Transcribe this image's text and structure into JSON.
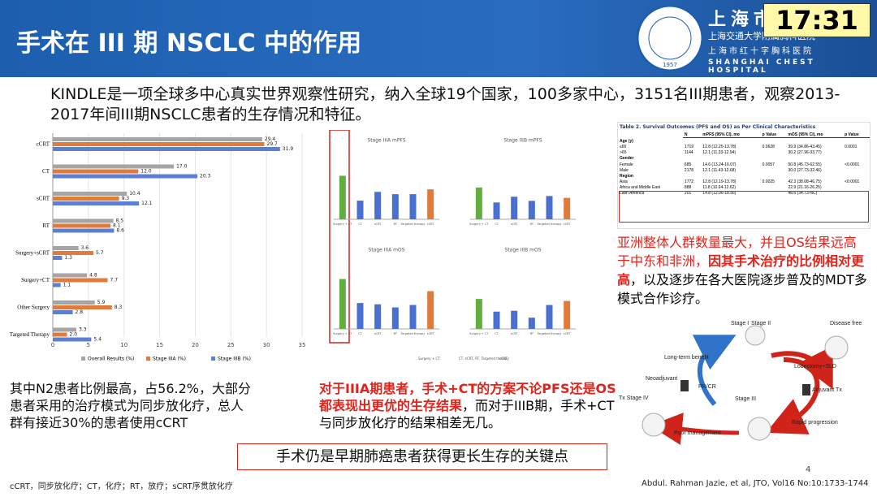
{
  "header": {
    "title": "手术在 III 期 NSCLC 中的作用",
    "clock": "17:31",
    "hospital_cn": "上海市胸科医院",
    "hospital_sub1": "上海交通大学附属胸科医院",
    "hospital_sub2": "上海市红十字胸科医院",
    "hospital_en": "SHANGHAI CHEST HOSPITAL",
    "logo_year": "1957"
  },
  "intro": "KINDLE是一项全球多中心真实世界观察性研究，纳入全球19个国家，100多家中心，3151名III期患者，观察2013-2017年间III期NSCLC患者的生存情况和特征。",
  "bar_chart": {
    "type": "hbar",
    "categories": [
      "cCRT",
      "CT",
      "sCRT",
      "RT",
      "Surgery+sCRT",
      "Surgery+CT",
      "Other Surgery",
      "Targeted Therapy"
    ],
    "series": [
      {
        "name": "Overall Results (%)",
        "color": "#a5a5a5",
        "values": [
          29.4,
          17,
          10.4,
          8.5,
          3.6,
          4.8,
          5.9,
          3.3
        ],
        "value_labels": [
          "29.4",
          "17.0",
          "10.4",
          "8.5",
          "3.6",
          "4.8",
          "5.9",
          "3.3"
        ]
      },
      {
        "name": "Stage IIIA (%)",
        "color": "#e07b39",
        "values": [
          29.7,
          12,
          9.3,
          8.1,
          5.7,
          7.7,
          8.3,
          2
        ],
        "value_labels": [
          "29.7",
          "12.0",
          "9.3",
          "8.1",
          "5.7",
          "7.7",
          "8.3",
          "2.0"
        ]
      },
      {
        "name": "Stage IIIB (%)",
        "color": "#5b7fd6",
        "values": [
          31.9,
          20.3,
          12.1,
          8.6,
          1.3,
          1.1,
          2.8,
          5.4
        ],
        "value_labels": [
          "31.9",
          "20.3",
          "12.1",
          "8.6",
          "1.3",
          "1.1",
          "2.8",
          "5.4"
        ]
      }
    ],
    "xlim": [
      0,
      35
    ],
    "xticks": [
      0,
      5,
      10,
      15,
      20,
      25,
      30,
      35
    ],
    "grid": true
  },
  "mini_charts": {
    "categories": [
      "Surgery + CT",
      "CT",
      "sCRT",
      "RT",
      "Targeted therapy",
      "cCRT"
    ],
    "colors": [
      "#5fae3e",
      "#4a6fd0",
      "#4a6fd0",
      "#4a6fd0",
      "#4a6fd0",
      "#e07b39"
    ],
    "panels": [
      {
        "type": "bar",
        "title": "Stage IIIA mPFS",
        "values": [
          18.9,
          8.1,
          11.9,
          10.9,
          10.9,
          13
        ],
        "ylim": [
          0,
          30
        ]
      },
      {
        "type": "bar",
        "title": "Stage IIIB mPFS",
        "values": [
          13.8,
          7.3,
          9.8,
          8,
          10.1,
          9.3
        ],
        "ylim": [
          0,
          30
        ]
      },
      {
        "type": "bar",
        "title": "Stage IIIA mOS",
        "values": [
          57.8,
          30,
          28.5,
          24.9,
          27.7,
          43.8
        ],
        "ylim": [
          0,
          80
        ]
      },
      {
        "type": "bar",
        "title": "Stage IIIB mOS",
        "values": [
          34.7,
          20,
          21,
          13,
          27.7,
          32.4
        ],
        "ylim": [
          0,
          80
        ]
      }
    ],
    "legend": [
      "Surgery + CT",
      "CT, sCRT, RT, Targeted therapy",
      "cCRT"
    ]
  },
  "table": {
    "title": "Table 2. Survival Outcomes (PFS and OS) as Per Clinical Characteristics",
    "columns": [
      "N",
      "mPFS (95% CI), mo",
      "p Value",
      "mOS (95% CI), mo",
      "p Value"
    ],
    "rows": [
      [
        "Age (y)"
      ],
      [
        "≤65",
        "1719",
        "12.8 (12.25-13.78)",
        "0.0628",
        "39.9 (34.86-43.45)",
        "0.0001"
      ],
      [
        ">65",
        "1144",
        "12.1 (11.33-12.94)",
        null,
        "30.2 (27.96-33.77)",
        null
      ],
      [
        "Gender"
      ],
      [
        "Female",
        "685",
        "14.6 (13.24-16.07)",
        "0.0057",
        "50.8 (45.73-62.55)",
        "<0.0001"
      ],
      [
        "Male",
        "2178",
        "12.1 (11.43-12.68)",
        null,
        "30.0 (27.73-32.46)",
        null
      ],
      [
        "Region"
      ],
      [
        "Asia",
        "1772",
        "12.8 (12.19-13.78)",
        "0.0025",
        "42.3 (38.08-46.75)",
        "<0.0001"
      ],
      [
        "Africa and Middle East",
        "888",
        "11.8 (10.64-12.62)",
        null,
        "22.9 (21.16-26.25)",
        null
      ],
      [
        "Latin America",
        "201",
        "14.8 (12.06-18.56)",
        null,
        "48.6 (34.73-NC)",
        null
      ]
    ]
  },
  "right_note": [
    {
      "text": "亚洲整体人群数量最大，并且OS结果远高于中东和非洲，",
      "red": true,
      "bold": false
    },
    {
      "text": "因其手术治疗的比例相对更高",
      "red": true,
      "bold": true
    },
    {
      "text": "，以及逐步在各大医院逐步普及的MDT多模式合作诊疗。",
      "red": false,
      "bold": false
    }
  ],
  "left_note": "其中N2患者比例最高，占56.2%，大部分患者采用的治疗模式为同步放化疗，总人群有接近30%的患者使用cCRT",
  "middle_note": [
    {
      "text": "对于IIIA期患者，手术+CT的方案不论PFS还是OS都表现出更优的生存结果",
      "red": true,
      "bold": true
    },
    {
      "text": "，而对于IIIB期，手术+CT与同步放化疗的结果相差无几。",
      "red": false,
      "bold": false
    }
  ],
  "diagram": {
    "stage_1": "Stage I",
    "stage_2": "Stage II",
    "disease_free": "Disease free",
    "long_term": "Long-term benefit",
    "pr_cr": "PR/CR",
    "lobectomy": "Lobectomy+SLD",
    "neoadjuvant": "Neoadjuvant",
    "adjuvant": "Adjuvant Tx",
    "stage_3": "Stage III",
    "stage_4": "Tx Stage IV",
    "rapid": "Rapid progression",
    "poor": "Poor management"
  },
  "key_message": "手术仍是早期肺癌患者获得更长生存的关键点",
  "page_number": "4",
  "footnote": "cCRT，同步放化疗；CT，化疗；RT，放疗；sCRT序贯放化疗",
  "citation": "Abdul. Rahman Jazie, et al, JTO, Vol16 No:10:1733-1744"
}
